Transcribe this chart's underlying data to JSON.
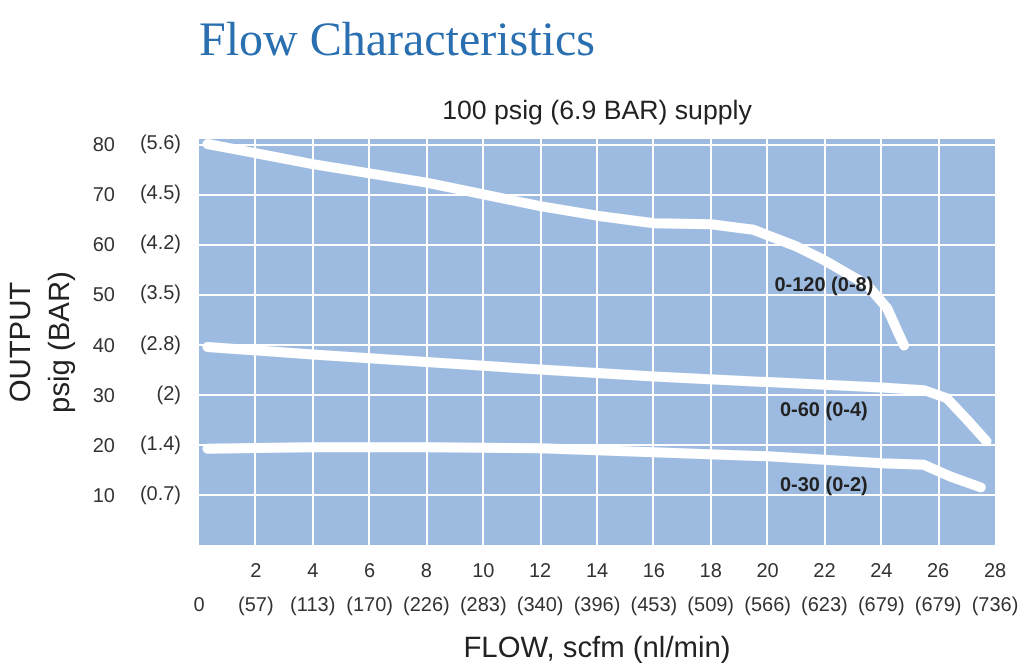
{
  "chart_data": {
    "type": "line",
    "title": "Flow Characteristics",
    "subtitle": "100 psig (6.9 BAR) supply",
    "xlabel": "FLOW, scfm (nl/min)",
    "ylabel": "OUTPUT\npsig (BAR)",
    "xlim": [
      0,
      28
    ],
    "ylim": [
      0,
      81
    ],
    "xticks": [
      {
        "value": 0,
        "label": null
      },
      2,
      4,
      6,
      8,
      10,
      12,
      14,
      16,
      18,
      20,
      22,
      24,
      26,
      28
    ],
    "yticks": [
      10,
      20,
      30,
      40,
      50,
      60,
      70,
      80
    ],
    "annotations": [
      "0",
      "(57)",
      "(113)",
      "(170)",
      "(226)",
      "(283)",
      "(340)",
      "(396)",
      "(453)",
      "(509)",
      "(566)",
      "(623)",
      "(679)",
      "(679)",
      "(736)",
      "(0.7)",
      "(1.4)",
      "(2)",
      "(2.8)",
      "(3.5)",
      "(4.2)",
      "(4.5)",
      "(5.6)"
    ],
    "grid": true,
    "line_style": "solid",
    "series": [
      {
        "name": "0-120 (0-8)",
        "color": "#ffffff",
        "x": [
          0.3,
          4,
          8,
          12,
          14,
          16,
          18,
          19.5,
          21,
          22,
          23.5,
          24.2,
          24.8
        ],
        "values": [
          80,
          76,
          72.3,
          67.6,
          65.7,
          64.2,
          64,
          62.9,
          59.6,
          56.8,
          51.9,
          47.3,
          39.8
        ]
      },
      {
        "name": "0-60 (0-4)",
        "color": "#ffffff",
        "x": [
          0.3,
          4,
          8,
          12,
          16,
          20,
          24,
          25.5,
          26.3,
          27,
          27.7
        ],
        "values": [
          39.5,
          38,
          36.5,
          35,
          33.6,
          32.5,
          31.4,
          30.9,
          29.3,
          25.1,
          20.7
        ]
      },
      {
        "name": "0-30 (0-2)",
        "color": "#ffffff",
        "x": [
          0.3,
          4,
          8,
          12,
          16,
          20,
          24,
          25.5,
          26.5,
          27.5
        ],
        "values": [
          19.2,
          19.5,
          19.5,
          19.3,
          18.5,
          17.7,
          16.3,
          16,
          13.5,
          11.5
        ]
      }
    ]
  }
}
